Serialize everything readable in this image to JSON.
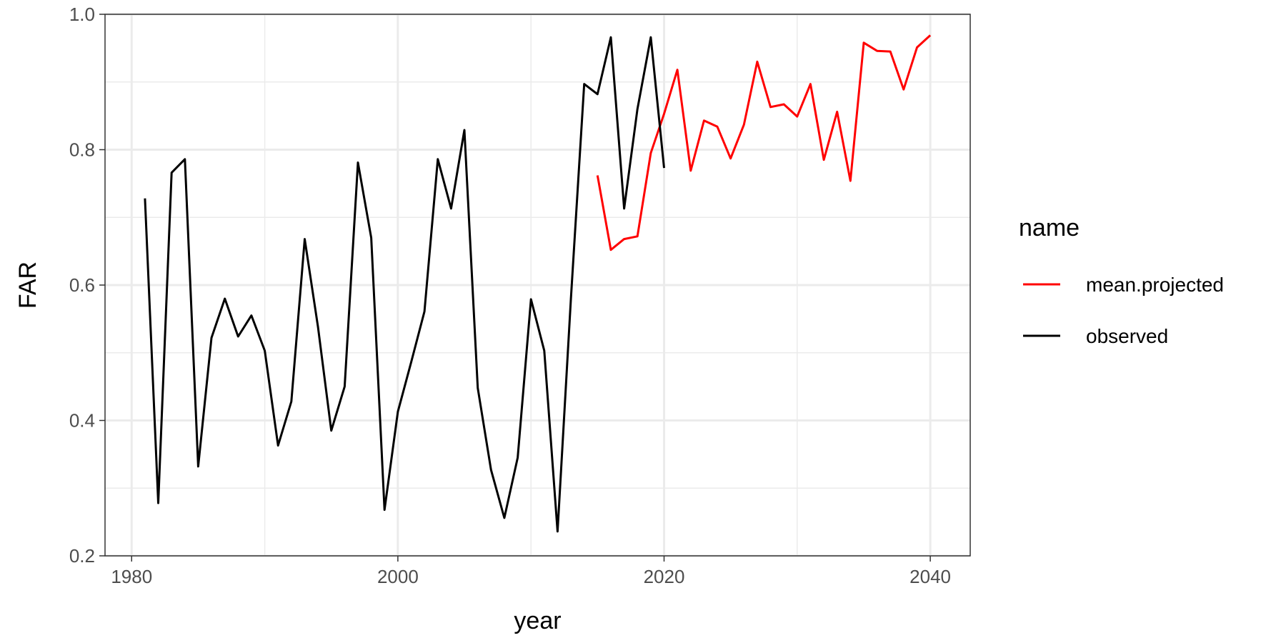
{
  "chart_data": {
    "type": "line",
    "xlabel": "year",
    "ylabel": "FAR",
    "xlim": [
      1978,
      2043
    ],
    "ylim": [
      0.2,
      1.0
    ],
    "x_ticks": [
      1980,
      2000,
      2020,
      2040
    ],
    "y_ticks": [
      0.2,
      0.4,
      0.6,
      0.8,
      1.0
    ],
    "x_tick_labels": [
      "1980",
      "2000",
      "2020",
      "2040"
    ],
    "y_tick_labels": [
      "0.2",
      "0.4",
      "0.6",
      "0.8",
      "1.0"
    ],
    "grid": true,
    "legend": {
      "title": "name",
      "position": "right",
      "entries": [
        "mean.projected",
        "observed"
      ]
    },
    "series": [
      {
        "name": "mean.projected",
        "color": "#ff0000",
        "x": [
          2015,
          2016,
          2017,
          2018,
          2019,
          2020,
          2021,
          2022,
          2023,
          2024,
          2025,
          2026,
          2027,
          2028,
          2029,
          2030,
          2031,
          2032,
          2033,
          2034,
          2035,
          2036,
          2037,
          2038,
          2039,
          2040
        ],
        "y": [
          0.762,
          0.652,
          0.668,
          0.672,
          0.795,
          0.853,
          0.918,
          0.769,
          0.843,
          0.834,
          0.787,
          0.837,
          0.93,
          0.863,
          0.867,
          0.849,
          0.897,
          0.785,
          0.856,
          0.754,
          0.958,
          0.946,
          0.945,
          0.889,
          0.951,
          0.969
        ]
      },
      {
        "name": "observed",
        "color": "#000000",
        "x": [
          1981,
          1982,
          1983,
          1984,
          1985,
          1986,
          1987,
          1988,
          1989,
          1990,
          1991,
          1992,
          1993,
          1994,
          1995,
          1996,
          1997,
          1998,
          1999,
          2000,
          2001,
          2002,
          2003,
          2004,
          2005,
          2006,
          2007,
          2008,
          2009,
          2010,
          2011,
          2012,
          2013,
          2014,
          2015,
          2016,
          2017,
          2018,
          2019,
          2020
        ],
        "y": [
          0.728,
          0.278,
          0.766,
          0.786,
          0.332,
          0.522,
          0.58,
          0.524,
          0.555,
          0.503,
          0.363,
          0.428,
          0.668,
          0.538,
          0.385,
          0.45,
          0.781,
          0.67,
          0.268,
          0.413,
          0.486,
          0.561,
          0.786,
          0.713,
          0.829,
          0.448,
          0.327,
          0.256,
          0.345,
          0.579,
          0.503,
          0.236,
          0.58,
          0.897,
          0.882,
          0.966,
          0.713,
          0.86,
          0.966,
          0.773
        ]
      }
    ]
  }
}
